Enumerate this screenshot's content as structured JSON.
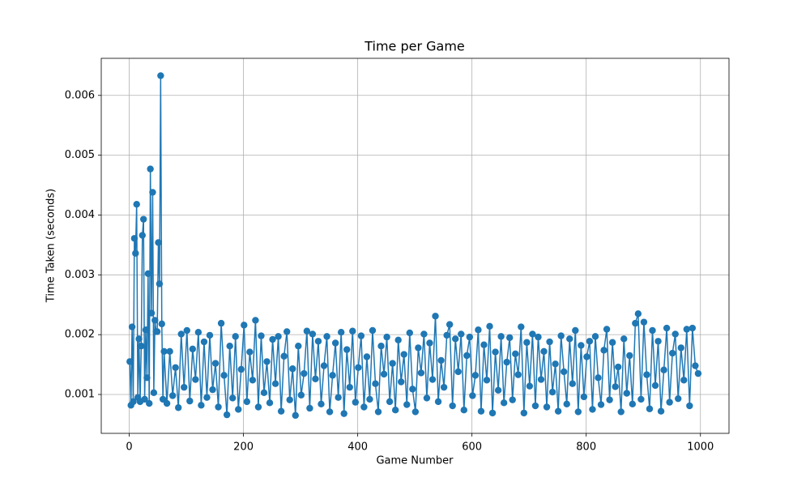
{
  "chart_data": {
    "type": "line",
    "title": "Time per Game",
    "xlabel": "Game Number",
    "ylabel": "Time Taken (seconds)",
    "x": [
      1,
      3,
      5,
      7,
      9,
      11,
      13,
      15,
      17,
      19,
      21,
      23,
      25,
      27,
      29,
      31,
      33,
      35,
      37,
      39,
      41,
      43,
      45,
      47,
      49,
      51,
      53,
      55,
      57,
      59,
      61,
      66,
      71,
      76,
      81,
      86,
      91,
      96,
      101,
      106,
      111,
      116,
      121,
      126,
      131,
      136,
      141,
      146,
      151,
      156,
      161,
      166,
      171,
      176,
      181,
      186,
      191,
      196,
      201,
      206,
      211,
      216,
      221,
      226,
      231,
      236,
      241,
      246,
      251,
      256,
      261,
      266,
      271,
      276,
      281,
      286,
      291,
      296,
      301,
      306,
      311,
      316,
      321,
      326,
      331,
      336,
      341,
      346,
      351,
      356,
      361,
      366,
      371,
      376,
      381,
      386,
      391,
      396,
      401,
      406,
      411,
      416,
      421,
      426,
      431,
      436,
      441,
      446,
      451,
      456,
      461,
      466,
      471,
      476,
      481,
      486,
      491,
      496,
      501,
      506,
      511,
      516,
      521,
      526,
      531,
      536,
      541,
      546,
      551,
      556,
      561,
      566,
      571,
      576,
      581,
      586,
      591,
      596,
      601,
      606,
      611,
      616,
      621,
      626,
      631,
      636,
      641,
      646,
      651,
      656,
      661,
      666,
      671,
      676,
      681,
      686,
      691,
      696,
      701,
      706,
      711,
      716,
      721,
      726,
      731,
      736,
      741,
      746,
      751,
      756,
      761,
      766,
      771,
      776,
      781,
      786,
      791,
      796,
      801,
      806,
      811,
      816,
      821,
      826,
      831,
      836,
      841,
      846,
      851,
      856,
      861,
      866,
      871,
      876,
      881,
      886,
      891,
      896,
      901,
      906,
      911,
      916,
      921,
      926,
      931,
      936,
      941,
      946,
      951,
      956,
      961,
      966,
      971,
      976,
      981,
      986,
      991,
      996
    ],
    "series": [
      {
        "color": "#1f77b4",
        "values": [
          0.00155,
          0.00082,
          0.00213,
          0.00088,
          0.00361,
          0.00336,
          0.00418,
          0.00095,
          0.00193,
          0.00088,
          0.00181,
          0.00366,
          0.00393,
          0.00092,
          0.00208,
          0.00128,
          0.00302,
          0.00085,
          0.00477,
          0.00236,
          0.00438,
          0.00103,
          0.00224,
          0.00205,
          0.00205,
          0.00354,
          0.00285,
          0.00633,
          0.00218,
          0.00092,
          0.00172,
          0.00085,
          0.00172,
          0.00098,
          0.00145,
          0.00078,
          0.00201,
          0.00112,
          0.00207,
          0.00089,
          0.00176,
          0.00125,
          0.00204,
          0.00082,
          0.00188,
          0.00095,
          0.00199,
          0.00108,
          0.00152,
          0.00079,
          0.00219,
          0.00132,
          0.00066,
          0.00181,
          0.00094,
          0.00197,
          0.00075,
          0.00142,
          0.00216,
          0.00088,
          0.00171,
          0.00124,
          0.00224,
          0.00079,
          0.00198,
          0.00103,
          0.00155,
          0.00086,
          0.00192,
          0.00118,
          0.00197,
          0.00072,
          0.00164,
          0.00205,
          0.00091,
          0.00143,
          0.00065,
          0.00181,
          0.00099,
          0.00135,
          0.00206,
          0.00077,
          0.00201,
          0.00126,
          0.00189,
          0.00084,
          0.00148,
          0.00197,
          0.00071,
          0.00132,
          0.00186,
          0.00095,
          0.00204,
          0.00068,
          0.00175,
          0.00112,
          0.00206,
          0.00087,
          0.00145,
          0.00198,
          0.00079,
          0.00163,
          0.00092,
          0.00207,
          0.00118,
          0.00071,
          0.00181,
          0.00134,
          0.00196,
          0.00088,
          0.00152,
          0.00074,
          0.00191,
          0.00121,
          0.00167,
          0.00083,
          0.00203,
          0.00109,
          0.00071,
          0.00178,
          0.00136,
          0.00201,
          0.00094,
          0.00186,
          0.00125,
          0.00231,
          0.00088,
          0.00157,
          0.00112,
          0.00199,
          0.00217,
          0.00081,
          0.00193,
          0.00138,
          0.00201,
          0.00074,
          0.00165,
          0.00196,
          0.00098,
          0.00132,
          0.00208,
          0.00072,
          0.00183,
          0.00124,
          0.00214,
          0.00069,
          0.00171,
          0.00107,
          0.00197,
          0.00086,
          0.00154,
          0.00195,
          0.00091,
          0.00168,
          0.00133,
          0.00213,
          0.00069,
          0.00187,
          0.00114,
          0.00201,
          0.00081,
          0.00196,
          0.00125,
          0.00172,
          0.00079,
          0.00188,
          0.00104,
          0.00151,
          0.00072,
          0.00198,
          0.00138,
          0.00084,
          0.00193,
          0.00118,
          0.00207,
          0.00071,
          0.00182,
          0.00096,
          0.00163,
          0.00189,
          0.00075,
          0.00197,
          0.00128,
          0.00083,
          0.00174,
          0.00209,
          0.00091,
          0.00187,
          0.00113,
          0.00146,
          0.00071,
          0.00193,
          0.00102,
          0.00165,
          0.00084,
          0.00219,
          0.00235,
          0.00092,
          0.00221,
          0.00133,
          0.00076,
          0.00207,
          0.00115,
          0.00189,
          0.00072,
          0.00141,
          0.00211,
          0.00087,
          0.00169,
          0.00201,
          0.00093,
          0.00178,
          0.00124,
          0.00209,
          0.00081,
          0.00211,
          0.00148,
          0.00135
        ]
      }
    ],
    "xlim": [
      -49,
      1050
    ],
    "ylim": [
      0.00035,
      0.00662
    ],
    "xticks": [
      0,
      200,
      400,
      600,
      800,
      1000
    ],
    "yticks": [
      0.001,
      0.002,
      0.003,
      0.004,
      0.005,
      0.006
    ],
    "grid": true,
    "marker": true
  }
}
